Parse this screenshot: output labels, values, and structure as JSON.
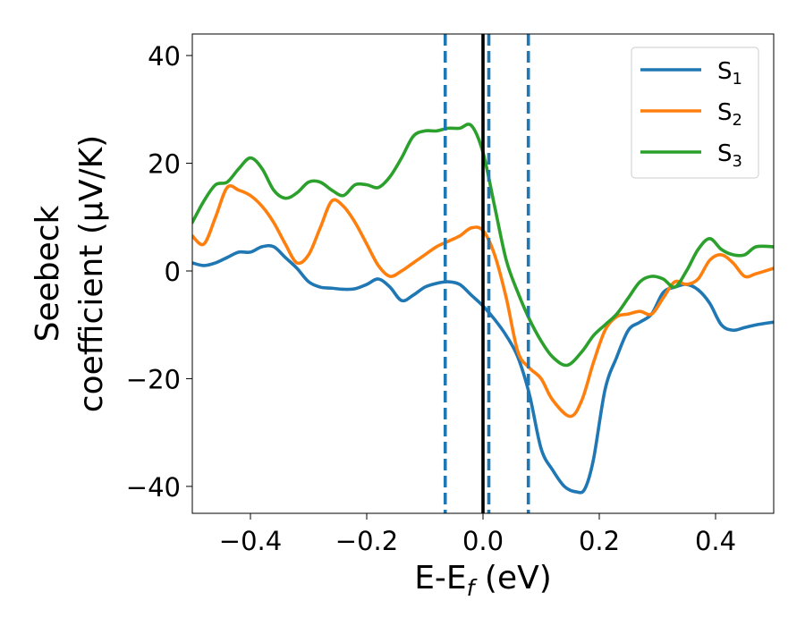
{
  "chart_data": {
    "type": "line",
    "xlabel": "E-E_f (eV)",
    "ylabel_line1": "Seebeck",
    "ylabel_line2": "coefficient  (μV/K)",
    "xlim": [
      -0.5,
      0.5
    ],
    "ylim": [
      -45,
      44
    ],
    "xticks": [
      -0.4,
      -0.2,
      0.0,
      0.2,
      0.4
    ],
    "xtick_labels": [
      "−0.4",
      "−0.2",
      "0.0",
      "0.2",
      "0.4"
    ],
    "yticks": [
      40,
      20,
      0,
      -20,
      -40
    ],
    "ytick_labels": [
      "40",
      "20",
      "0",
      "−20",
      "−40"
    ],
    "grid": false,
    "legend_position": "top-right",
    "colors": {
      "S1": "#1f77b4",
      "S2": "#ff7f0e",
      "S3": "#2ca02c",
      "fermi_line": "#000000",
      "dashed_lines": "#1f77b4"
    },
    "vertical_lines": {
      "solid": [
        0.0
      ],
      "dashed": [
        -0.065,
        0.01,
        0.078
      ]
    },
    "series": [
      {
        "name": "S1",
        "legend_main": "S",
        "legend_sub": "1",
        "x": [
          -0.5,
          -0.48,
          -0.46,
          -0.44,
          -0.42,
          -0.4,
          -0.38,
          -0.36,
          -0.34,
          -0.32,
          -0.3,
          -0.28,
          -0.26,
          -0.24,
          -0.22,
          -0.2,
          -0.18,
          -0.16,
          -0.14,
          -0.12,
          -0.1,
          -0.08,
          -0.06,
          -0.04,
          -0.02,
          0.0,
          0.02,
          0.04,
          0.06,
          0.08,
          0.1,
          0.12,
          0.14,
          0.16,
          0.175,
          0.19,
          0.21,
          0.23,
          0.25,
          0.27,
          0.29,
          0.31,
          0.33,
          0.35,
          0.37,
          0.39,
          0.41,
          0.43,
          0.45,
          0.47,
          0.5
        ],
        "values": [
          1.5,
          1.0,
          1.5,
          2.5,
          3.5,
          3.5,
          4.5,
          4.5,
          2.5,
          0.5,
          -2.0,
          -3.0,
          -3.2,
          -3.4,
          -3.3,
          -2.5,
          -1.5,
          -3.0,
          -5.5,
          -4.5,
          -3.0,
          -2.3,
          -2.0,
          -2.5,
          -4.5,
          -6.5,
          -9.0,
          -12.0,
          -16.0,
          -23.0,
          -33.0,
          -37.0,
          -40.0,
          -41.0,
          -40.5,
          -35.0,
          -22.0,
          -16.0,
          -11.0,
          -9.5,
          -8.0,
          -4.0,
          -3.0,
          -2.5,
          -3.5,
          -6.0,
          -10.0,
          -11.0,
          -10.5,
          -10.0,
          -9.5
        ]
      },
      {
        "name": "S2",
        "legend_main": "S",
        "legend_sub": "2",
        "x": [
          -0.5,
          -0.48,
          -0.46,
          -0.44,
          -0.42,
          -0.4,
          -0.38,
          -0.36,
          -0.34,
          -0.32,
          -0.3,
          -0.28,
          -0.26,
          -0.24,
          -0.22,
          -0.2,
          -0.18,
          -0.16,
          -0.14,
          -0.12,
          -0.1,
          -0.08,
          -0.06,
          -0.04,
          -0.02,
          0.0,
          0.02,
          0.04,
          0.06,
          0.08,
          0.1,
          0.12,
          0.15,
          0.17,
          0.19,
          0.21,
          0.23,
          0.25,
          0.27,
          0.29,
          0.31,
          0.33,
          0.35,
          0.37,
          0.39,
          0.41,
          0.43,
          0.45,
          0.47,
          0.5
        ],
        "values": [
          6.5,
          5.0,
          10.0,
          15.5,
          15.0,
          14.0,
          12.0,
          9.0,
          5.0,
          1.5,
          3.0,
          8.0,
          13.0,
          12.0,
          9.0,
          5.0,
          1.0,
          -1.0,
          0.0,
          1.5,
          3.0,
          4.5,
          5.5,
          6.5,
          8.0,
          7.5,
          3.0,
          -5.0,
          -15.0,
          -18.0,
          -20.0,
          -24.0,
          -27.0,
          -24.0,
          -17.0,
          -11.0,
          -8.5,
          -8.0,
          -7.5,
          -8.0,
          -5.0,
          -2.0,
          -2.5,
          -1.5,
          2.0,
          3.0,
          1.5,
          -1.0,
          -0.5,
          0.5
        ]
      },
      {
        "name": "S3",
        "legend_main": "S",
        "legend_sub": "3",
        "x": [
          -0.5,
          -0.48,
          -0.46,
          -0.44,
          -0.42,
          -0.4,
          -0.38,
          -0.36,
          -0.34,
          -0.32,
          -0.3,
          -0.28,
          -0.26,
          -0.24,
          -0.22,
          -0.2,
          -0.18,
          -0.16,
          -0.14,
          -0.12,
          -0.1,
          -0.08,
          -0.06,
          -0.04,
          -0.02,
          0.0,
          0.02,
          0.04,
          0.06,
          0.08,
          0.1,
          0.12,
          0.145,
          0.17,
          0.19,
          0.21,
          0.23,
          0.25,
          0.27,
          0.29,
          0.31,
          0.33,
          0.35,
          0.37,
          0.39,
          0.41,
          0.43,
          0.45,
          0.47,
          0.5
        ],
        "values": [
          9.0,
          13.0,
          16.0,
          16.5,
          19.0,
          21.0,
          19.0,
          15.0,
          13.5,
          14.5,
          16.5,
          16.5,
          15.0,
          14.0,
          16.0,
          16.0,
          15.5,
          17.5,
          21.0,
          25.0,
          26.0,
          26.0,
          26.5,
          26.5,
          27.0,
          22.0,
          12.0,
          2.0,
          -4.0,
          -9.0,
          -13.0,
          -16.0,
          -17.5,
          -15.0,
          -12.0,
          -10.0,
          -8.0,
          -5.0,
          -2.0,
          -1.0,
          -1.5,
          -3.0,
          0.0,
          4.0,
          6.0,
          4.0,
          3.0,
          3.0,
          4.5,
          4.5
        ]
      }
    ]
  }
}
